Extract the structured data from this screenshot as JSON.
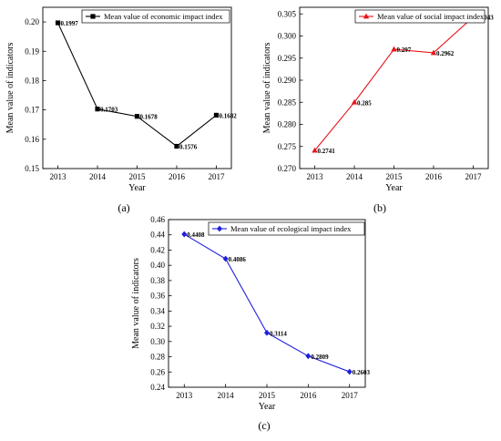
{
  "chart_data": [
    {
      "type": "line",
      "panel_label": "(a)",
      "xlabel": "Year",
      "ylabel": "Mean value of indicators",
      "x": [
        2013,
        2014,
        2015,
        2016,
        2017
      ],
      "x_tick_labels": [
        "2013",
        "2014",
        "2015",
        "2016",
        "2017"
      ],
      "ylim": [
        0.15,
        0.205
      ],
      "y_ticks": [
        0.15,
        0.16,
        0.17,
        0.18,
        0.19,
        0.2
      ],
      "y_tick_labels": [
        "0.15",
        "0.16",
        "0.17",
        "0.18",
        "0.19",
        "0.20"
      ],
      "grid": false,
      "legend_position": "top-right",
      "series": [
        {
          "name": "Mean value of economic impact index",
          "values": [
            0.1997,
            0.1703,
            0.1678,
            0.1576,
            0.1682
          ],
          "data_labels": [
            "0.1997",
            "0.1703",
            "0.1678",
            "0.1576",
            "0.1682"
          ],
          "color": "#000000",
          "marker": "square"
        }
      ]
    },
    {
      "type": "line",
      "panel_label": "(b)",
      "xlabel": "Year",
      "ylabel": "Mean value of indicators",
      "x": [
        2013,
        2014,
        2015,
        2016,
        2017
      ],
      "x_tick_labels": [
        "2013",
        "2014",
        "2015",
        "2016",
        "2017"
      ],
      "ylim": [
        0.27,
        0.3065
      ],
      "y_ticks": [
        0.27,
        0.275,
        0.28,
        0.285,
        0.29,
        0.295,
        0.3,
        0.305
      ],
      "y_tick_labels": [
        "0.270",
        "0.275",
        "0.280",
        "0.285",
        "0.290",
        "0.295",
        "0.300",
        "0.305"
      ],
      "grid": false,
      "legend_position": "top-right",
      "series": [
        {
          "name": "Mean value of social impact index",
          "values": [
            0.2741,
            0.285,
            0.297,
            0.2962,
            0.3043
          ],
          "data_labels": [
            "0.2741",
            "0.285",
            "0.297",
            "0.2962",
            "0.3043"
          ],
          "color": "#e8141a",
          "marker": "triangle"
        }
      ]
    },
    {
      "type": "line",
      "panel_label": "(c)",
      "xlabel": "Year",
      "ylabel": "Mean value of indicators",
      "x": [
        2013,
        2014,
        2015,
        2016,
        2017
      ],
      "x_tick_labels": [
        "2013",
        "2014",
        "2015",
        "2016",
        "2017"
      ],
      "ylim": [
        0.24,
        0.46
      ],
      "y_ticks": [
        0.24,
        0.26,
        0.28,
        0.3,
        0.32,
        0.34,
        0.36,
        0.38,
        0.4,
        0.42,
        0.44,
        0.46
      ],
      "y_tick_labels": [
        "0.24",
        "0.26",
        "0.28",
        "0.30",
        "0.32",
        "0.34",
        "0.36",
        "0.38",
        "0.40",
        "0.42",
        "0.44",
        "0.46"
      ],
      "grid": false,
      "legend_position": "top-left",
      "series": [
        {
          "name": "Mean value of ecological impact index",
          "values": [
            0.4408,
            0.4086,
            0.3114,
            0.2809,
            0.2603
          ],
          "data_labels": [
            "0.4408",
            "0.4086",
            "0.3114",
            "0.2809",
            "0.2603"
          ],
          "color": "#1f1fe0",
          "marker": "diamond"
        }
      ]
    }
  ]
}
